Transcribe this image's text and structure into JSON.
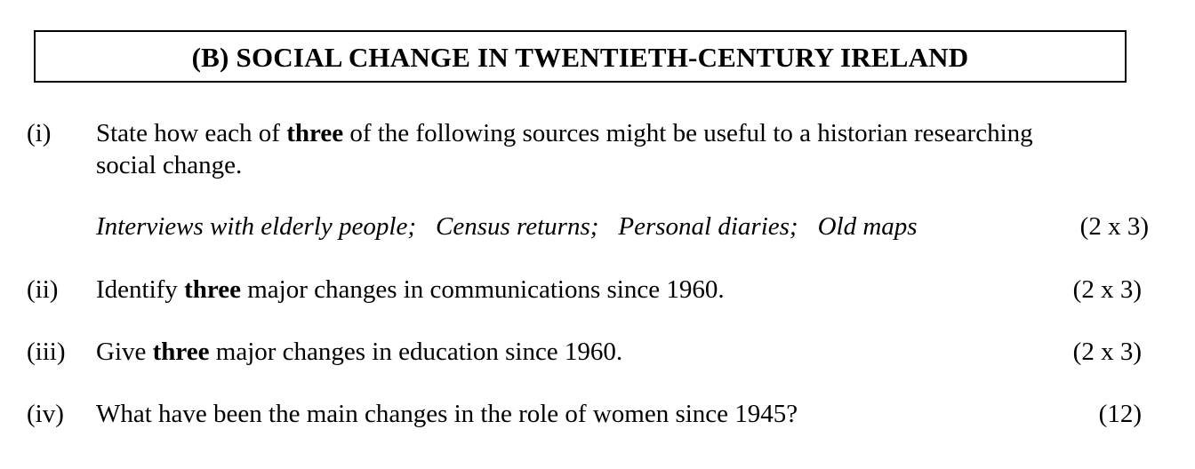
{
  "section": {
    "title": "(B) SOCIAL CHANGE IN TWENTIETH-CENTURY IRELAND"
  },
  "questions": [
    {
      "number": "(i)",
      "text_before": "State how each of ",
      "bold": "three",
      "text_after": " of the following sources might be useful to a historian researching",
      "text_line2": "social change.",
      "sources": [
        "Interviews with elderly people;",
        "Census returns;",
        "Personal diaries;",
        "Old maps"
      ],
      "marks": "(2 x 3)"
    },
    {
      "number": "(ii)",
      "text_before": "Identify ",
      "bold": "three",
      "text_after": " major changes in communications since 1960.",
      "marks": "(2 x 3)"
    },
    {
      "number": "(iii)",
      "text_before": "Give ",
      "bold": "three",
      "text_after": " major changes in education since 1960.",
      "marks": "(2 x 3)"
    },
    {
      "number": "(iv)",
      "text": "What have been the main changes in the role of women since 1945?",
      "marks": "(12)"
    }
  ]
}
